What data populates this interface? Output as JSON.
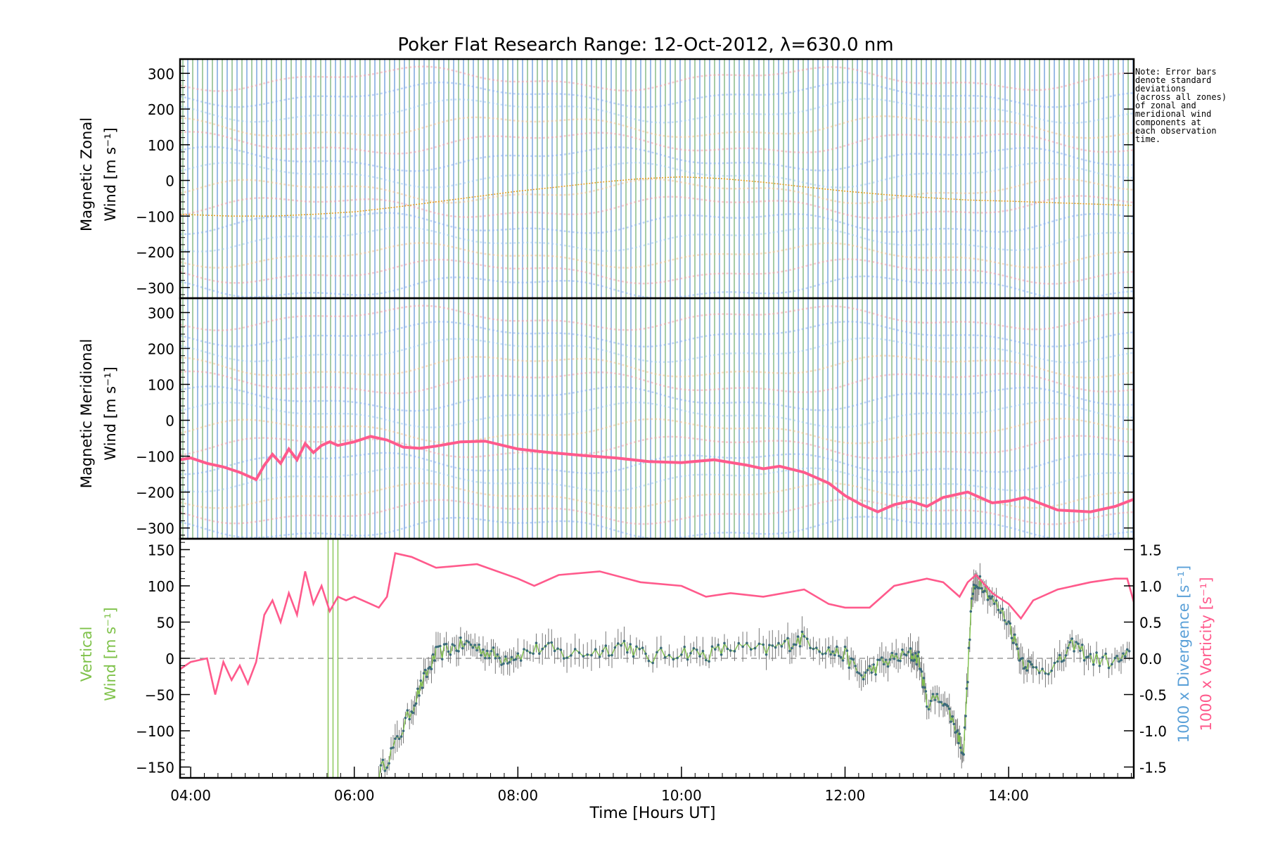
{
  "chart_data": [
    {
      "type": "line",
      "title": "Poker Flat Research Range: 12-Oct-2012, λ=630.0 nm",
      "ylabel": [
        "Magnetic Zonal",
        "Wind [m s⁻¹]"
      ],
      "ylim": [
        -330,
        340
      ],
      "yticks": [
        300,
        200,
        100,
        0,
        -100,
        -200,
        -300
      ],
      "xlim": [
        3.87,
        15.53
      ],
      "series": [
        {
          "x": [
            3.87,
            4.5,
            5,
            5.5,
            6,
            6.5,
            7,
            7.5,
            8,
            8.5,
            9,
            9.5,
            10,
            10.5,
            11,
            11.5,
            12,
            12.5,
            13,
            13.5,
            14,
            14.5,
            15,
            15.5
          ],
          "values": [
            -95,
            -100,
            -100,
            -95,
            -88,
            -75,
            -60,
            -45,
            -30,
            -18,
            -5,
            5,
            10,
            5,
            -5,
            -18,
            -30,
            -40,
            -48,
            -55,
            -58,
            -62,
            -66,
            -70
          ],
          "color": "#e8a020"
        }
      ]
    },
    {
      "type": "line",
      "ylabel": [
        "Magnetic Meridional",
        "Wind [m s⁻¹]"
      ],
      "ylim": [
        -330,
        340
      ],
      "yticks": [
        300,
        200,
        100,
        0,
        -100,
        -200,
        -300
      ],
      "xlim": [
        3.87,
        15.53
      ],
      "series": [
        {
          "x": [
            3.87,
            4.0,
            4.2,
            4.4,
            4.6,
            4.8,
            4.9,
            5.0,
            5.1,
            5.2,
            5.3,
            5.4,
            5.5,
            5.6,
            5.7,
            5.8,
            6.0,
            6.2,
            6.4,
            6.6,
            6.8,
            7.0,
            7.3,
            7.6,
            8.0,
            8.4,
            8.8,
            9.2,
            9.6,
            10.0,
            10.4,
            10.8,
            11.0,
            11.2,
            11.5,
            11.8,
            12.0,
            12.2,
            12.4,
            12.6,
            12.8,
            13.0,
            13.2,
            13.5,
            13.8,
            14.0,
            14.2,
            14.6,
            15.0,
            15.3,
            15.53
          ],
          "values": [
            -110,
            -105,
            -120,
            -130,
            -145,
            -165,
            -125,
            -95,
            -120,
            -80,
            -110,
            -65,
            -90,
            -70,
            -60,
            -70,
            -60,
            -45,
            -55,
            -75,
            -78,
            -72,
            -60,
            -58,
            -80,
            -90,
            -98,
            -105,
            -115,
            -118,
            -110,
            -125,
            -135,
            -128,
            -145,
            -175,
            -210,
            -235,
            -255,
            -235,
            -225,
            -240,
            -215,
            -200,
            -230,
            -225,
            -215,
            -250,
            -255,
            -240,
            -220
          ],
          "color": "#ff5a8c"
        }
      ]
    },
    {
      "type": "line",
      "ylabel": [
        "Vertical",
        "Wind [m s⁻¹]"
      ],
      "y2label": [
        "1000 x Divergence [s⁻¹]",
        "1000 x Vorticity [s⁻¹]"
      ],
      "ylim": [
        -165,
        165
      ],
      "yticks": [
        150,
        100,
        50,
        0,
        -50,
        -100,
        -150
      ],
      "y2lim": [
        -1.65,
        1.65
      ],
      "y2ticks": [
        1.5,
        1.0,
        0.5,
        0.0,
        -0.5,
        -1.0,
        -1.5
      ],
      "y2ticklabels": [
        "1.5",
        "1.0",
        "0.5",
        "0.0",
        "-0.5",
        "-1.0",
        "-1.5"
      ],
      "xlim": [
        3.87,
        15.53
      ],
      "xticks": [
        4,
        6,
        8,
        10,
        12,
        14
      ],
      "xticklabels": [
        "04:00",
        "06:00",
        "08:00",
        "10:00",
        "12:00",
        "14:00"
      ],
      "xlabel": "Time [Hours UT]",
      "series": [
        {
          "name": "1000 x Vorticity",
          "x": [
            3.87,
            4.0,
            4.2,
            4.3,
            4.4,
            4.5,
            4.6,
            4.7,
            4.8,
            4.9,
            5.0,
            5.1,
            5.2,
            5.3,
            5.4,
            5.5,
            5.6,
            5.7,
            5.8,
            5.9,
            6.0,
            6.2,
            6.3,
            6.4,
            6.5,
            6.7,
            7.0,
            7.5,
            8.0,
            8.2,
            8.5,
            9.0,
            9.5,
            10.0,
            10.3,
            10.6,
            11.0,
            11.5,
            11.8,
            12.0,
            12.3,
            12.6,
            12.8,
            13.0,
            13.2,
            13.4,
            13.5,
            13.6,
            13.8,
            14.0,
            14.15,
            14.3,
            14.6,
            15.0,
            15.3,
            15.45,
            15.53
          ],
          "values": [
            -0.15,
            -0.05,
            0.0,
            -0.5,
            -0.05,
            -0.3,
            -0.1,
            -0.35,
            -0.05,
            0.6,
            0.8,
            0.5,
            0.9,
            0.6,
            1.2,
            0.75,
            1.0,
            0.65,
            0.85,
            0.8,
            0.85,
            0.75,
            0.7,
            0.85,
            1.45,
            1.4,
            1.25,
            1.3,
            1.1,
            1.0,
            1.15,
            1.2,
            1.05,
            1.0,
            0.85,
            0.9,
            0.85,
            0.95,
            0.75,
            0.7,
            0.7,
            1.0,
            1.05,
            1.1,
            1.05,
            0.85,
            1.05,
            1.15,
            0.9,
            0.75,
            0.55,
            0.8,
            0.95,
            1.05,
            1.1,
            1.1,
            0.78
          ],
          "color": "#ff5a8c"
        },
        {
          "name": "Vertical Wind",
          "x": [
            6.3,
            6.5,
            6.7,
            6.85,
            7.0,
            7.2,
            7.4,
            7.6,
            7.8,
            8.0,
            8.3,
            8.6,
            9.0,
            9.3,
            9.6,
            10.0,
            10.3,
            10.6,
            11.0,
            11.3,
            11.5,
            11.8,
            12.0,
            12.2,
            12.4,
            12.6,
            12.8,
            12.9,
            13.0,
            13.2,
            13.35,
            13.45,
            13.55,
            13.65,
            13.8,
            14.0,
            14.15,
            14.3,
            14.6,
            14.8,
            15.0,
            15.3,
            15.5
          ],
          "values": [
            -160,
            -120,
            -70,
            -30,
            5,
            15,
            20,
            10,
            0,
            5,
            15,
            5,
            10,
            20,
            0,
            10,
            5,
            15,
            10,
            20,
            28,
            10,
            5,
            -25,
            -10,
            0,
            5,
            0,
            -60,
            -55,
            -95,
            -130,
            85,
            110,
            80,
            50,
            0,
            -15,
            -10,
            20,
            0,
            -5,
            5
          ],
          "color": "#7fc24a"
        }
      ]
    }
  ],
  "note": [
    "Note: Error bars",
    "denote standard",
    "deviations",
    "(across all zones)",
    "of zonal and",
    "meridional wind",
    "components at",
    "each observation",
    "time."
  ],
  "colors": {
    "zonal_trend": "#e8a020",
    "meridional": "#ff5a8c",
    "vorticity": "#ff5a8c",
    "vertical": "#7fc24a",
    "divergence": "#5aa0d8",
    "band_lines": "#5a8cdc"
  }
}
